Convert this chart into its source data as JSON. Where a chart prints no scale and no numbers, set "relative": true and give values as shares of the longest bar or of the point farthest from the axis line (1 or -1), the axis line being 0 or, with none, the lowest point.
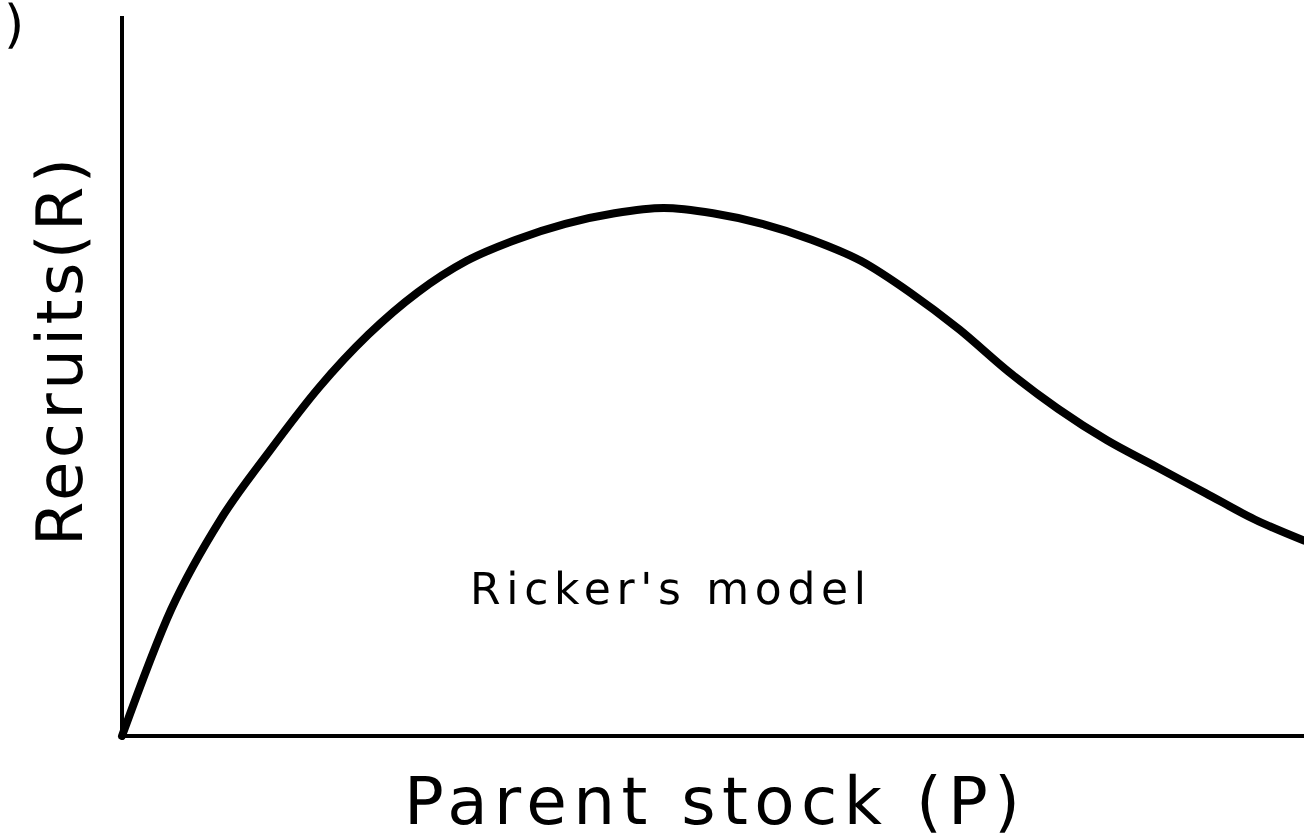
{
  "chart_data": {
    "type": "line",
    "xlabel": "Parent stock (P)",
    "ylabel": "Recruits(R)",
    "relative": true,
    "categories": [
      null,
      null,
      null,
      null,
      null,
      null,
      null,
      null,
      null,
      null,
      null,
      null,
      null,
      null,
      null,
      null,
      null,
      null,
      null,
      null,
      null,
      null,
      null,
      null,
      null
    ],
    "series": [
      {
        "color": "#000000",
        "values": [
          0,
          0.24,
          0.41,
          0.54,
          0.66,
          0.76,
          0.84,
          0.9,
          0.94,
          0.97,
          0.99,
          1,
          0.99,
          0.97,
          0.94,
          0.9,
          0.84,
          0.77,
          0.69,
          0.62,
          0.56,
          0.51,
          0.46,
          0.41,
          0.37
        ]
      }
    ],
    "line_style": "solid",
    "annotations": [
      ")",
      "Ricker's model"
    ]
  }
}
